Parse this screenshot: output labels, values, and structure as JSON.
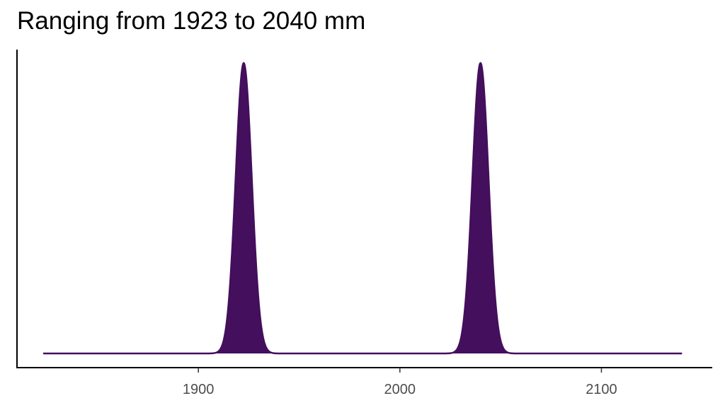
{
  "chart_data": {
    "type": "area",
    "title": "Ranging from 1923 to 2040 mm",
    "xlabel": "",
    "ylabel": "",
    "xlim": [
      1810,
      2155
    ],
    "ylim": [
      0,
      1.05
    ],
    "x_range": [
      1823,
      2140
    ],
    "x_ticks": [
      1900,
      2000,
      2100
    ],
    "peaks": [
      {
        "center": 1922.5,
        "sd": 4.0,
        "height": 1.0
      },
      {
        "center": 2040,
        "sd": 4.0,
        "height": 1.0
      }
    ],
    "fill_color": "#440f5c",
    "grid": false
  }
}
